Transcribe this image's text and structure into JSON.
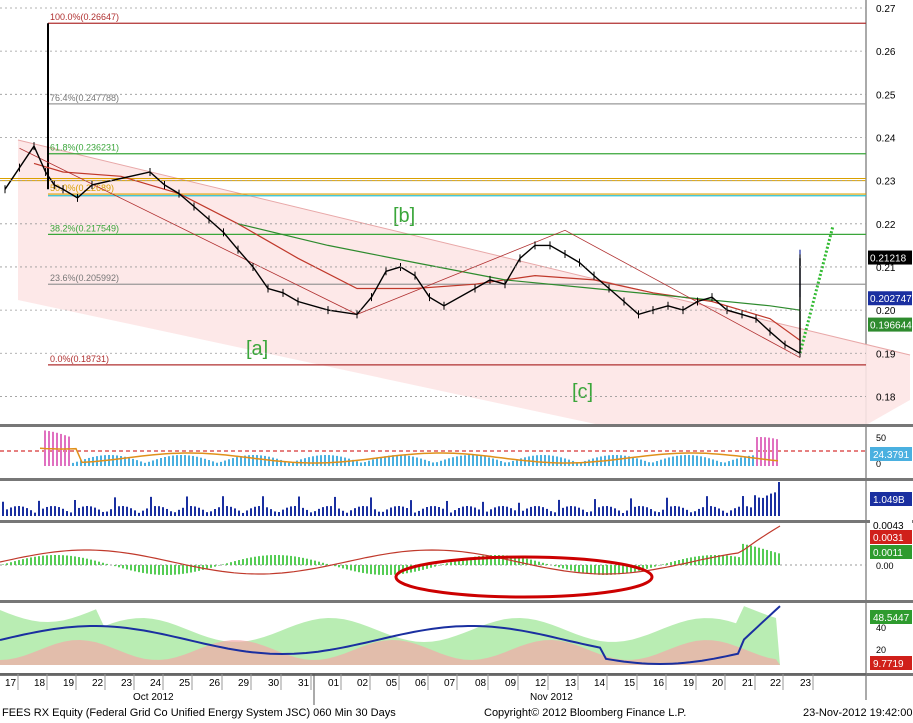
{
  "footer": {
    "left": "FEES RX Equity (Federal Grid Co Unified Energy System JSC) 060 Min 30 Days",
    "center": "Copyright© 2012 Bloomberg Finance L.P.",
    "right": "23-Nov-2012 19:42:00"
  },
  "colors": {
    "price": "#000000",
    "ma_short": "#c0392b",
    "ma_long": "#2e8b2e",
    "ma_blue": "#1a2fa0",
    "channel_fill": "#fde6e6",
    "fib_red": "#b03030",
    "fib_green": "#3aa63a",
    "fib_cyan": "#2cc0d0",
    "fib_orange": "#d9a000",
    "wave_label": "#3aa63a",
    "ellipse": "#cc0000"
  },
  "chart_data": [
    {
      "type": "candlestick",
      "title": "",
      "y_axis_side": "right",
      "ylim": [
        0.175,
        0.27
      ],
      "y_ticks": [
        "0.27",
        "0.26",
        "0.25",
        "0.24",
        "0.23",
        "0.22",
        "0.21",
        "0.20",
        "0.19",
        "0.18"
      ],
      "x_tick_labels": [
        "17",
        "18",
        "19",
        "22",
        "23",
        "24",
        "25",
        "26",
        "29",
        "30",
        "31",
        "01",
        "02",
        "05",
        "06",
        "07",
        "08",
        "09",
        "12",
        "13",
        "14",
        "15",
        "16",
        "19",
        "20",
        "21",
        "22",
        "23"
      ],
      "month_labels": [
        "Oct 2012",
        "Nov 2012"
      ],
      "fibonacci_levels": [
        {
          "label": "100.0%(0.26647)",
          "value": 0.26647
        },
        {
          "label": "76.4%(0.247788)",
          "value": 0.247788
        },
        {
          "label": "61.8%(0.236231)",
          "value": 0.236231
        },
        {
          "label": "50.0%(0.22689)",
          "value": 0.22689
        },
        {
          "label": "38.2%(0.217549)",
          "value": 0.217549
        },
        {
          "label": "23.6%(0.205992)",
          "value": 0.205992
        },
        {
          "label": "0.0%(0.18731)",
          "value": 0.18731
        }
      ],
      "wave_labels": [
        "[a]",
        "[b]",
        "[c]"
      ],
      "price_close_path": [
        [
          17,
          0.228
        ],
        [
          17.5,
          0.233
        ],
        [
          18,
          0.238
        ],
        [
          18.4,
          0.232
        ],
        [
          18.7,
          0.229
        ],
        [
          19,
          0.228
        ],
        [
          19.5,
          0.226
        ],
        [
          20,
          0.229
        ],
        [
          22,
          0.232
        ],
        [
          22.5,
          0.229
        ],
        [
          23,
          0.227
        ],
        [
          23.5,
          0.224
        ],
        [
          24,
          0.221
        ],
        [
          24.5,
          0.218
        ],
        [
          25,
          0.214
        ],
        [
          25.5,
          0.21
        ],
        [
          26,
          0.205
        ],
        [
          26.5,
          0.204
        ],
        [
          27,
          0.202
        ],
        [
          28,
          0.2
        ],
        [
          29,
          0.199
        ],
        [
          29.5,
          0.203
        ],
        [
          30,
          0.209
        ],
        [
          30.5,
          0.21
        ],
        [
          31,
          0.208
        ],
        [
          31.5,
          0.203
        ],
        [
          32,
          0.201
        ],
        [
          33,
          0.205
        ],
        [
          33.5,
          0.207
        ],
        [
          34,
          0.206
        ],
        [
          34.5,
          0.212
        ],
        [
          35,
          0.215
        ],
        [
          35.5,
          0.215
        ],
        [
          36,
          0.213
        ],
        [
          36.5,
          0.211
        ],
        [
          37,
          0.208
        ],
        [
          37.5,
          0.205
        ],
        [
          38,
          0.202
        ],
        [
          38.5,
          0.199
        ],
        [
          39,
          0.2
        ],
        [
          39.5,
          0.201
        ],
        [
          40,
          0.2
        ],
        [
          40.5,
          0.202
        ],
        [
          41,
          0.203
        ],
        [
          41.5,
          0.2
        ],
        [
          42,
          0.199
        ],
        [
          42.5,
          0.198
        ],
        [
          43,
          0.195
        ],
        [
          43.5,
          0.192
        ],
        [
          44,
          0.19
        ],
        [
          44.5,
          0.19
        ],
        [
          45,
          0.192
        ],
        [
          45.5,
          0.193
        ],
        [
          46,
          0.193
        ],
        [
          47,
          0.195
        ],
        [
          48,
          0.197
        ],
        [
          48.5,
          0.196
        ],
        [
          49,
          0.196
        ],
        [
          49.5,
          0.194
        ],
        [
          50,
          0.193
        ],
        [
          50.5,
          0.192
        ],
        [
          51,
          0.192
        ],
        [
          51.5,
          0.193
        ],
        [
          52,
          0.195
        ],
        [
          52.5,
          0.196
        ],
        [
          53,
          0.197
        ],
        [
          53.3,
          0.198
        ],
        [
          53.6,
          0.205
        ],
        [
          54,
          0.21
        ],
        [
          54.3,
          0.206
        ],
        [
          54.6,
          0.21
        ],
        [
          55,
          0.211
        ],
        [
          55.3,
          0.212
        ]
      ],
      "indicators": [
        {
          "name": "24.3791",
          "panel": "rsi_histogram",
          "value": 24.3791
        },
        {
          "name": "1.049B",
          "panel": "volume",
          "value": 1.049
        },
        {
          "name": "0.0043",
          "panel": "macd",
          "value": 0.0043
        },
        {
          "name": "0.0031",
          "panel": "macd",
          "value": 0.0031
        },
        {
          "name": "0.0011",
          "panel": "macd",
          "value": 0.0011
        },
        {
          "name": "0.00",
          "panel": "macd",
          "value": 0.0
        },
        {
          "name": "48.5447",
          "panel": "dmi",
          "value": 48.5447
        },
        {
          "name": "20",
          "panel": "dmi",
          "value": 20
        },
        {
          "name": "9.7719",
          "panel": "dmi",
          "value": 9.7719
        }
      ],
      "last_price_tags": [
        {
          "label": "0.21218",
          "value": 0.21218
        },
        {
          "label": "0.202747",
          "value": 0.202747
        },
        {
          "label": "0.196644",
          "value": 0.196644
        }
      ],
      "panel_axis_labels": {
        "rsi": [
          "50",
          "0"
        ],
        "macd": [
          "0.00"
        ],
        "dmi": [
          "40",
          "20"
        ]
      }
    }
  ]
}
